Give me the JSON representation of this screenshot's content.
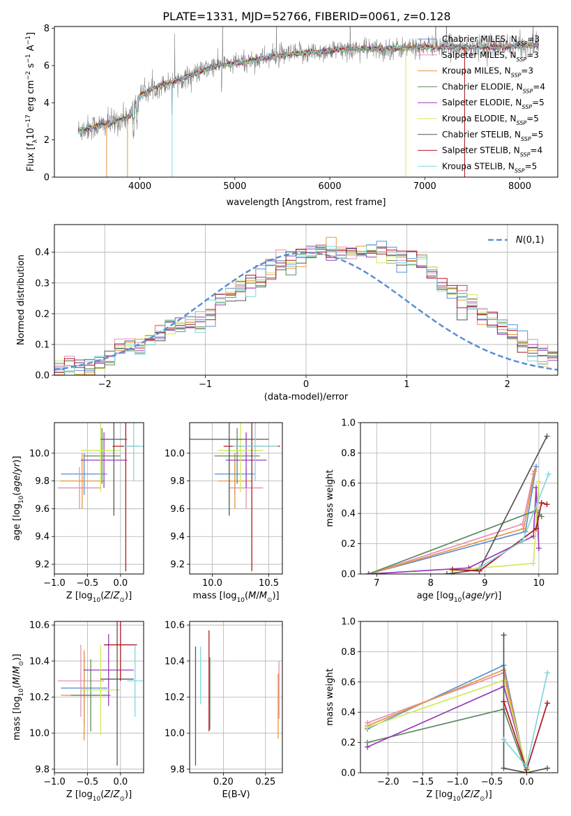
{
  "figure_title": "PLATE=1331, MJD=52766, FIBERID=0061, z=0.128",
  "colors": {
    "Chabrier MILES": "#5a8fd6",
    "Salpeter MILES": "#e58fb0",
    "Kroupa MILES": "#e8953a",
    "Chabrier ELODIE": "#5a8a60",
    "Salpeter ELODIE": "#9a3ab5",
    "Kroupa ELODIE": "#d2e85a",
    "Chabrier STELIB": "#555555",
    "Salpeter STELIB": "#b0161c",
    "Kroupa STELIB": "#80d6dc",
    "data": "#808080"
  },
  "chart_data": [
    {
      "id": "spectrum",
      "type": "line",
      "title": "PLATE=1331, MJD=52766, FIBERID=0061, z=0.128",
      "xlabel": "wavelength [Angstrom, rest frame]",
      "ylabel": "Flux [f_λ 10^-17 erg cm^-2 s^-1 A^-1]",
      "xlim": [
        3100,
        8400
      ],
      "ylim": [
        0,
        8.1
      ],
      "xticks": [
        4000,
        5000,
        6000,
        7000,
        8000
      ],
      "yticks": [
        0,
        2,
        4,
        6,
        8
      ],
      "legend_position": "top-right",
      "legend": [
        {
          "name": "Chabrier MILES",
          "nssp": "N_SSP=3"
        },
        {
          "name": "Salpeter MILES",
          "nssp": "N_SSP=3"
        },
        {
          "name": "Kroupa MILES",
          "nssp": "N_SSP=3"
        },
        {
          "name": "Chabrier ELODIE",
          "nssp": "N_SSP=4"
        },
        {
          "name": "Salpeter ELODIE",
          "nssp": "N_SSP=5"
        },
        {
          "name": "Kroupa ELODIE",
          "nssp": "N_SSP=5"
        },
        {
          "name": "Chabrier STELIB",
          "nssp": "N_SSP=5"
        },
        {
          "name": "Salpeter STELIB",
          "nssp": "N_SSP=4"
        },
        {
          "name": "Kroupa STELIB",
          "nssp": "N_SSP=5"
        }
      ],
      "continuum": {
        "x": [
          3350,
          3500,
          3700,
          3900,
          4000,
          4200,
          4500,
          4800,
          5000,
          5300,
          5600,
          6000,
          6300,
          6600,
          7000,
          7400,
          7800,
          8000,
          8200
        ],
        "y": [
          2.5,
          2.7,
          2.9,
          3.3,
          4.4,
          4.9,
          5.4,
          6.0,
          6.1,
          6.4,
          6.6,
          6.8,
          6.9,
          6.9,
          7.0,
          7.0,
          7.0,
          7.05,
          7.1
        ]
      }
    },
    {
      "id": "residuals",
      "type": "bar",
      "xlabel": "(data-model)/error",
      "ylabel": "Normed distribution",
      "xlim": [
        -2.5,
        2.5
      ],
      "ylim": [
        0,
        0.49
      ],
      "xticks": [
        -2,
        -1,
        0,
        1,
        2
      ],
      "yticks": [
        0.0,
        0.1,
        0.2,
        0.3,
        0.4
      ],
      "grid": true,
      "legend_position": "top-right",
      "legend": "N(0,1)",
      "bin_width": 0.1,
      "bin_start": -2.5,
      "histogram": [
        0.02,
        0.02,
        0.025,
        0.03,
        0.045,
        0.06,
        0.08,
        0.09,
        0.1,
        0.12,
        0.14,
        0.15,
        0.16,
        0.17,
        0.18,
        0.21,
        0.24,
        0.27,
        0.28,
        0.31,
        0.33,
        0.35,
        0.36,
        0.37,
        0.39,
        0.4,
        0.4,
        0.41,
        0.4,
        0.39,
        0.4,
        0.41,
        0.41,
        0.4,
        0.38,
        0.37,
        0.35,
        0.33,
        0.31,
        0.28,
        0.25,
        0.23,
        0.2,
        0.18,
        0.15,
        0.13,
        0.1,
        0.09,
        0.07,
        0.06
      ],
      "gaussian": {
        "mu": 0,
        "sigma": 1
      }
    },
    {
      "id": "age-vs-Z",
      "type": "scatter",
      "xlabel": "Z [log10(Z/Z⊙)]",
      "ylabel": "age [log10(age/yr)]",
      "xlim": [
        -1.0,
        0.35
      ],
      "ylim": [
        9.13,
        10.22
      ],
      "xticks": [
        -1.0,
        -0.5,
        0.0
      ],
      "yticks": [
        9.2,
        9.4,
        9.6,
        9.8,
        10.0
      ],
      "grid": true,
      "points": [
        {
          "series": "Chabrier MILES",
          "x": -0.55,
          "xerr": 0.35,
          "y": 9.85,
          "yerr": 0.15
        },
        {
          "series": "Salpeter MILES",
          "x": -0.62,
          "xerr": 0.33,
          "y": 9.75,
          "yerr": 0.15
        },
        {
          "series": "Kroupa MILES",
          "x": -0.58,
          "xerr": 0.33,
          "y": 9.8,
          "yerr": 0.2
        },
        {
          "series": "Chabrier ELODIE",
          "x": -0.28,
          "xerr": 0.28,
          "y": 9.98,
          "yerr": 0.2
        },
        {
          "series": "Salpeter ELODIE",
          "x": -0.25,
          "xerr": 0.35,
          "y": 9.95,
          "yerr": 0.2
        },
        {
          "series": "Kroupa ELODIE",
          "x": -0.3,
          "xerr": 0.3,
          "y": 10.02,
          "yerr": 0.3
        },
        {
          "series": "Chabrier STELIB",
          "x": -0.1,
          "xerr": 0.2,
          "y": 10.1,
          "yerr": 0.55
        },
        {
          "series": "Salpeter STELIB",
          "x": 0.08,
          "xerr": 0.2,
          "y": 10.05,
          "yerr": 0.9
        },
        {
          "series": "Kroupa STELIB",
          "x": 0.2,
          "xerr": 0.15,
          "y": 10.05,
          "yerr": 0.25
        }
      ]
    },
    {
      "id": "age-vs-mass",
      "type": "scatter",
      "xlabel": "mass [log10(M/M⊙)]",
      "ylabel": "",
      "xlim": [
        9.8,
        10.62
      ],
      "ylim": [
        9.13,
        10.22
      ],
      "xticks": [
        10.0,
        10.5
      ],
      "yticks": [
        9.2,
        9.4,
        9.6,
        9.8,
        10.0
      ],
      "grid": true,
      "points": [
        {
          "series": "Chabrier MILES",
          "x": 10.2,
          "xerr": 0.18,
          "y": 9.85,
          "yerr": 0.15
        },
        {
          "series": "Salpeter MILES",
          "x": 10.3,
          "xerr": 0.15,
          "y": 9.75,
          "yerr": 0.15
        },
        {
          "series": "Kroupa MILES",
          "x": 10.2,
          "xerr": 0.15,
          "y": 9.8,
          "yerr": 0.2
        },
        {
          "series": "Chabrier ELODIE",
          "x": 10.22,
          "xerr": 0.2,
          "y": 9.98,
          "yerr": 0.2
        },
        {
          "series": "Salpeter ELODIE",
          "x": 10.3,
          "xerr": 0.18,
          "y": 9.95,
          "yerr": 0.2
        },
        {
          "series": "Kroupa ELODIE",
          "x": 10.25,
          "xerr": 0.2,
          "y": 10.02,
          "yerr": 0.3
        },
        {
          "series": "Chabrier STELIB",
          "x": 10.15,
          "xerr": 0.35,
          "y": 10.1,
          "yerr": 0.55
        },
        {
          "series": "Salpeter STELIB",
          "x": 10.35,
          "xerr": 0.25,
          "y": 10.05,
          "yerr": 0.9
        },
        {
          "series": "Kroupa STELIB",
          "x": 10.38,
          "xerr": 0.2,
          "y": 10.05,
          "yerr": 0.25
        }
      ]
    },
    {
      "id": "weight-vs-age",
      "type": "line",
      "xlabel": "age [log10(age/yr)]",
      "ylabel": "mass weight",
      "xlim": [
        6.7,
        10.35
      ],
      "ylim": [
        0,
        1.0
      ],
      "xticks": [
        7,
        8,
        9,
        10
      ],
      "yticks": [
        0.0,
        0.2,
        0.4,
        0.6,
        0.8,
        1.0
      ],
      "grid": true,
      "series": [
        {
          "name": "Chabrier MILES",
          "x": [
            6.85,
            9.75,
            9.95
          ],
          "y": [
            0.0,
            0.28,
            0.71
          ]
        },
        {
          "name": "Salpeter MILES",
          "x": [
            6.85,
            9.7,
            9.9
          ],
          "y": [
            0.0,
            0.33,
            0.66
          ]
        },
        {
          "name": "Kroupa MILES",
          "x": [
            6.85,
            9.72,
            9.92
          ],
          "y": [
            0.0,
            0.3,
            0.68
          ]
        },
        {
          "name": "Chabrier ELODIE",
          "x": [
            6.85,
            9.95,
            10.05
          ],
          "y": [
            0.0,
            0.42,
            0.38
          ]
        },
        {
          "name": "Salpeter ELODIE",
          "x": [
            6.85,
            8.7,
            9.9,
            9.95,
            10.0
          ],
          "y": [
            0.0,
            0.04,
            0.25,
            0.57,
            0.17
          ]
        },
        {
          "name": "Kroupa ELODIE",
          "x": [
            8.4,
            8.9,
            9.9,
            10.0
          ],
          "y": [
            0.02,
            0.04,
            0.07,
            0.61
          ]
        },
        {
          "name": "Chabrier STELIB",
          "x": [
            8.3,
            8.9,
            10.15
          ],
          "y": [
            0.0,
            0.03,
            0.91
          ]
        },
        {
          "name": "Salpeter STELIB",
          "x": [
            8.4,
            8.9,
            9.95,
            10.05,
            10.15
          ],
          "y": [
            0.03,
            0.02,
            0.3,
            0.47,
            0.46
          ]
        },
        {
          "name": "Kroupa STELIB",
          "x": [
            8.9,
            9.7,
            10.18
          ],
          "y": [
            0.04,
            0.22,
            0.66
          ]
        }
      ]
    },
    {
      "id": "mass-vs-Z",
      "type": "scatter",
      "xlabel": "Z [log10(Z/Z⊙)]",
      "ylabel": "mass [log10(M/M⊙)]",
      "xlim": [
        -1.0,
        0.35
      ],
      "ylim": [
        9.78,
        10.62
      ],
      "xticks": [
        -1.0,
        -0.5,
        0.0
      ],
      "yticks": [
        9.8,
        10.0,
        10.2,
        10.4,
        10.6
      ],
      "grid": true,
      "points": [
        {
          "series": "Chabrier MILES",
          "x": -0.55,
          "xerr": 0.35,
          "y": 10.25,
          "yerr": 0.2
        },
        {
          "series": "Salpeter MILES",
          "x": -0.6,
          "xerr": 0.35,
          "y": 10.29,
          "yerr": 0.2
        },
        {
          "series": "Kroupa MILES",
          "x": -0.55,
          "xerr": 0.35,
          "y": 10.21,
          "yerr": 0.25
        },
        {
          "series": "Chabrier ELODIE",
          "x": -0.45,
          "xerr": 0.3,
          "y": 10.21,
          "yerr": 0.2
        },
        {
          "series": "Salpeter ELODIE",
          "x": -0.18,
          "xerr": 0.38,
          "y": 10.35,
          "yerr": 0.2
        },
        {
          "series": "Kroupa ELODIE",
          "x": -0.3,
          "xerr": 0.3,
          "y": 10.24,
          "yerr": 0.25
        },
        {
          "series": "Chabrier STELIB",
          "x": -0.05,
          "xerr": 0.25,
          "y": 10.3,
          "yerr": 0.48
        },
        {
          "series": "Salpeter STELIB",
          "x": 0.0,
          "xerr": 0.25,
          "y": 10.49,
          "yerr": 0.2
        },
        {
          "series": "Kroupa STELIB",
          "x": 0.22,
          "xerr": 0.12,
          "y": 10.29,
          "yerr": 0.2
        }
      ]
    },
    {
      "id": "mass-vs-EBV",
      "type": "scatter",
      "xlabel": "E(B-V)",
      "ylabel": "",
      "xlim": [
        0.16,
        0.27
      ],
      "ylim": [
        9.78,
        10.62
      ],
      "xticks": [
        0.2,
        0.25
      ],
      "yticks": [
        9.8,
        10.0,
        10.2,
        10.4,
        10.6
      ],
      "grid": true,
      "points": [
        {
          "series": "Chabrier STELIB",
          "x": 0.167,
          "y": 10.15,
          "yerr": 0.33
        },
        {
          "series": "Kroupa STELIB",
          "x": 0.173,
          "y": 10.32,
          "yerr": 0.16
        },
        {
          "series": "Salpeter STELIB",
          "x": 0.183,
          "y": 10.29,
          "yerr": 0.28
        },
        {
          "series": "Chabrier ELODIE",
          "x": 0.184,
          "y": 10.22,
          "yerr": 0.2
        },
        {
          "series": "Kroupa MILES",
          "x": 0.265,
          "y": 10.15,
          "yerr": 0.18
        },
        {
          "series": "Salpeter MILES",
          "x": 0.266,
          "y": 10.24,
          "yerr": 0.16
        }
      ]
    },
    {
      "id": "weight-vs-Z",
      "type": "line",
      "xlabel": "Z [log10(Z/Z⊙)]",
      "ylabel": "mass weight",
      "xlim": [
        -2.4,
        0.45
      ],
      "ylim": [
        0,
        1.0
      ],
      "xticks": [
        -2.0,
        -1.5,
        -1.0,
        -0.5,
        0.0
      ],
      "yticks": [
        0.0,
        0.2,
        0.4,
        0.6,
        0.8,
        1.0
      ],
      "grid": true,
      "series": [
        {
          "name": "Chabrier MILES",
          "x": [
            -2.3,
            -0.33,
            0.0
          ],
          "y": [
            0.29,
            0.71,
            0.0
          ]
        },
        {
          "name": "Salpeter MILES",
          "x": [
            -2.3,
            -0.33,
            0.0
          ],
          "y": [
            0.33,
            0.66,
            0.0
          ]
        },
        {
          "name": "Kroupa MILES",
          "x": [
            -2.3,
            -0.33,
            0.0
          ],
          "y": [
            0.31,
            0.68,
            0.0
          ]
        },
        {
          "name": "Chabrier ELODIE",
          "x": [
            -2.3,
            -0.33,
            0.0
          ],
          "y": [
            0.2,
            0.42,
            0.0
          ]
        },
        {
          "name": "Salpeter ELODIE",
          "x": [
            -2.3,
            -0.33,
            0.0
          ],
          "y": [
            0.17,
            0.57,
            0.03
          ]
        },
        {
          "name": "Kroupa ELODIE",
          "x": [
            -2.3,
            -0.33,
            0.0
          ],
          "y": [
            0.3,
            0.61,
            0.03
          ]
        },
        {
          "name": "Chabrier STELIB",
          "x": [
            -0.33,
            -0.33,
            0.0,
            0.3
          ],
          "y": [
            0.91,
            0.03,
            0.0,
            0.03
          ]
        },
        {
          "name": "Salpeter STELIB",
          "x": [
            -0.33,
            0.0,
            0.3
          ],
          "y": [
            0.47,
            0.02,
            0.46
          ]
        },
        {
          "name": "Kroupa STELIB",
          "x": [
            -0.33,
            0.0,
            0.3
          ],
          "y": [
            0.22,
            0.04,
            0.66
          ]
        }
      ]
    }
  ]
}
